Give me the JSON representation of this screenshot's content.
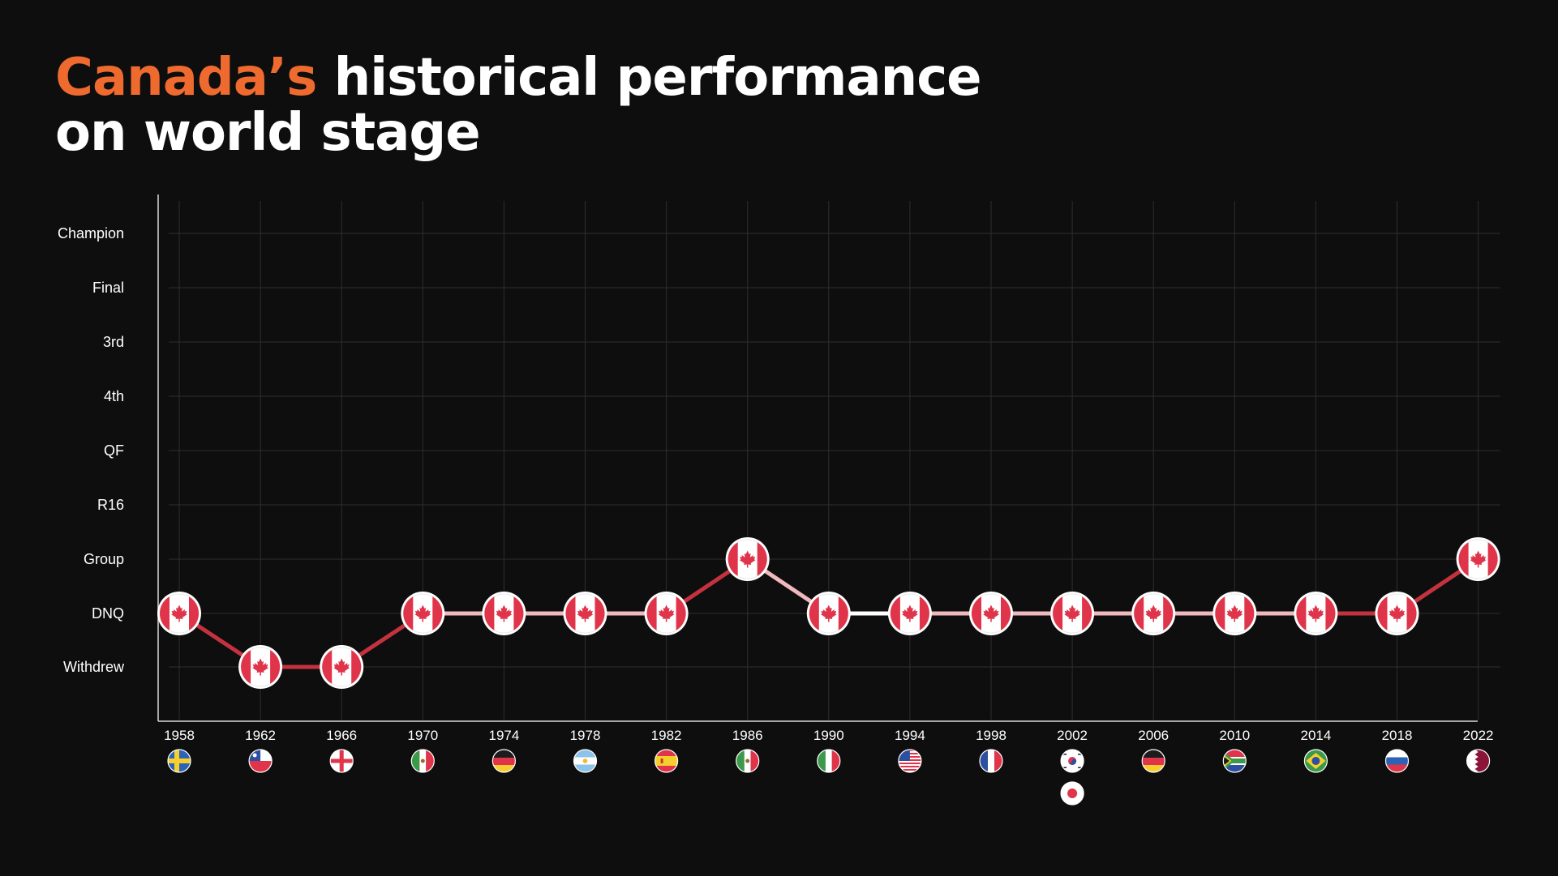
{
  "title": {
    "highlight": "Canada’s",
    "line1_rest": " historical performance",
    "line2": "on world stage"
  },
  "colors": {
    "background": "#0e0e0e",
    "accent": "#ef6a2e",
    "canada_red": "#e0344a",
    "line_red": "#c4323f",
    "line_pink": "#efb9bf",
    "line_white": "#ffffff"
  },
  "chart_data": {
    "type": "line",
    "title": "Canada’s historical performance on world stage",
    "xlabel": "",
    "ylabel": "",
    "y_levels": [
      "Withdrew",
      "DNQ",
      "Group",
      "R16",
      "QF",
      "4th",
      "3rd",
      "Final",
      "Champion"
    ],
    "grid": true,
    "categories": [
      "1958",
      "1962",
      "1966",
      "1970",
      "1974",
      "1978",
      "1982",
      "1986",
      "1990",
      "1994",
      "1998",
      "2002",
      "2006",
      "2010",
      "2014",
      "2018",
      "2022"
    ],
    "values": [
      "DNQ",
      "Withdrew",
      "Withdrew",
      "DNQ",
      "DNQ",
      "DNQ",
      "DNQ",
      "Group",
      "DNQ",
      "DNQ",
      "DNQ",
      "DNQ",
      "DNQ",
      "DNQ",
      "DNQ",
      "DNQ",
      "Group"
    ],
    "marker": "canada-flag",
    "host_flags": [
      [
        "sweden"
      ],
      [
        "chile"
      ],
      [
        "england"
      ],
      [
        "mexico"
      ],
      [
        "germany"
      ],
      [
        "argentina"
      ],
      [
        "spain"
      ],
      [
        "mexico"
      ],
      [
        "italy"
      ],
      [
        "usa"
      ],
      [
        "france"
      ],
      [
        "south-korea",
        "japan"
      ],
      [
        "germany"
      ],
      [
        "south-africa"
      ],
      [
        "brazil"
      ],
      [
        "russia"
      ],
      [
        "qatar"
      ]
    ]
  }
}
